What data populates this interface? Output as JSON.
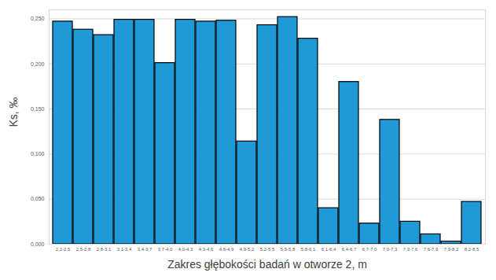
{
  "chart_data": {
    "type": "bar",
    "x_label": "Zakres głębokości badań w otworze 2, m",
    "y_label": "Ks, ‰",
    "categories": [
      "2,2-2,5",
      "2,5-2,8",
      "2,8-3,1",
      "3,1-3,4",
      "3,4-3,7",
      "3,7-4,0",
      "4,0-4,3",
      "4,3-4,6",
      "4,6-4,9",
      "4,9-5,2",
      "5,2-5,5",
      "5,5-5,8",
      "5,8-6,1",
      "6,1-6,4",
      "6,4-6,7",
      "6,7-7,0",
      "7,0-7,3",
      "7,3-7,6",
      "7,6-7,9",
      "7,9-8,2",
      "8,2-8,5"
    ],
    "values": [
      0.247,
      0.238,
      0.232,
      0.249,
      0.249,
      0.201,
      0.249,
      0.247,
      0.248,
      0.114,
      0.243,
      0.252,
      0.228,
      0.04,
      0.18,
      0.023,
      0.138,
      0.025,
      0.011,
      0.003,
      0.047
    ],
    "color": "#1f9ad6",
    "ylim": [
      0,
      0.26
    ],
    "yticks": [
      {
        "value": 0,
        "label": "0,000"
      },
      {
        "value": 0.05,
        "label": "0,050"
      },
      {
        "value": 0.1,
        "label": "0,100"
      },
      {
        "value": 0.15,
        "label": "0,150"
      },
      {
        "value": 0.2,
        "label": "0,200"
      },
      {
        "value": 0.25,
        "label": "0,250"
      }
    ],
    "grid": true
  }
}
